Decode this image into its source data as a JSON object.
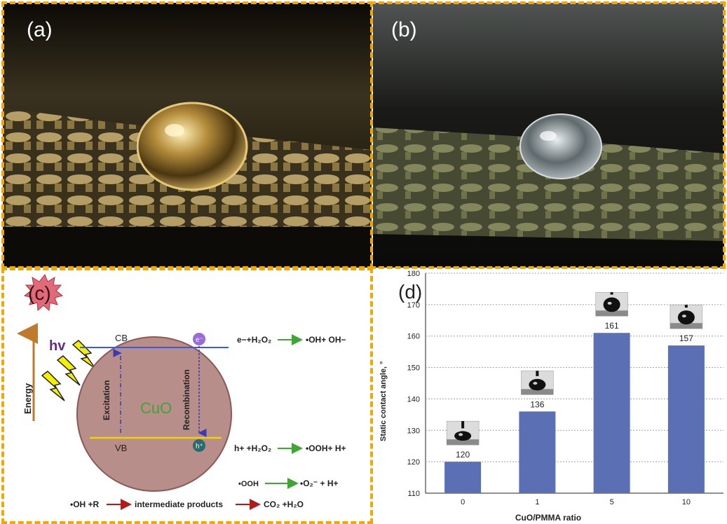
{
  "panels": {
    "a": {
      "label": "(a)"
    },
    "b": {
      "label": "(b)"
    },
    "c": {
      "label": "(c)",
      "hv": "hv",
      "energy": "Energy",
      "cb": "CB",
      "vb": "VB",
      "material": "CuO",
      "excitation": "Excitation",
      "recombination": "Recombination",
      "electron": "e⁻",
      "hole": "h⁺",
      "reaction1": "e−+H₂O₂ → •OH+ OH−",
      "reaction1_left": "e−+H₂O₂",
      "reaction1_right": "•OH+ OH−",
      "reaction2_left": "h+ +H₂O₂",
      "reaction2_right": "•OOH+ H+",
      "reaction3_left": "•OOH",
      "reaction3_right": "•O₂⁻ + H+",
      "reaction4_a": "•OH +R",
      "reaction4_b": "intermediate products",
      "reaction4_c": "CO₂ +H₂O"
    },
    "d": {
      "label": "(d)"
    }
  },
  "chart_data": {
    "type": "bar",
    "categories": [
      "0",
      "1",
      "5",
      "10"
    ],
    "values": [
      120,
      136,
      161,
      157
    ],
    "data_labels": [
      "120",
      "136",
      "161",
      "157"
    ],
    "xlabel": "CuO/PMMA ratio",
    "ylabel": "Static contact angle, °",
    "ylim": [
      110,
      180
    ],
    "yticks": [
      "110",
      "120",
      "130",
      "140",
      "150",
      "160",
      "170",
      "180"
    ],
    "grid": true,
    "bar_color": "#5b6fb5"
  },
  "colors": {
    "frame": "#f2a800",
    "cb_line": "#3b5bdb",
    "vb_line": "#f2d200",
    "circle": "#b88e8a",
    "green_arrow": "#3fa535",
    "red_arrow": "#b01c1c"
  }
}
